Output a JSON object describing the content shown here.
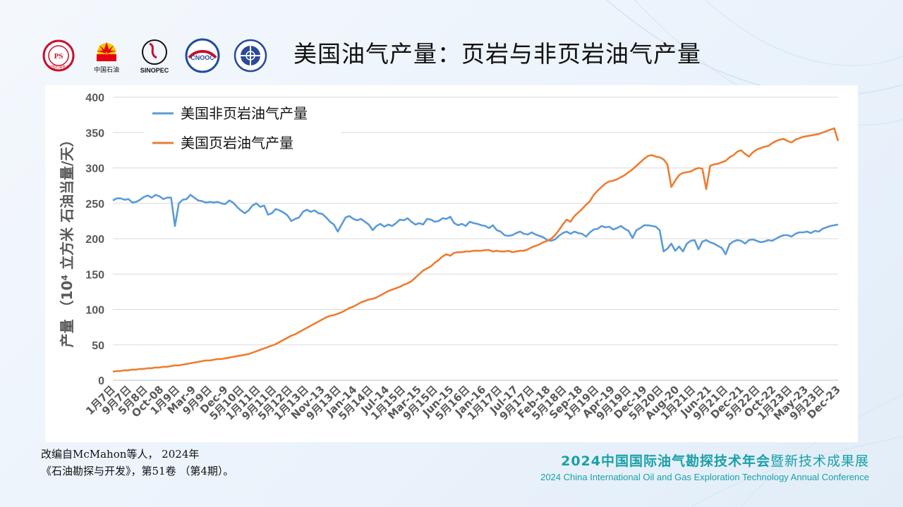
{
  "slide": {
    "title": "美国油气产量：页岩与非页岩油气产量",
    "source_line1": "改编自McMahon等人， 2024年",
    "source_line2": "《石油勘探与开发》，第51卷 （第4期）。",
    "conference_cn": "2024中国国际油气勘探技术年会",
    "conference_cn_suffix": "暨新技术成果展",
    "conference_en": "2024 China International Oil and Gas Exploration Technology Annual Conference"
  },
  "logos": [
    {
      "name": "cpsf-logo-icon",
      "text": "中国石油学会"
    },
    {
      "name": "petrochina-logo-icon",
      "text": "中国石油"
    },
    {
      "name": "sinopec-logo-icon",
      "text": "SINOPEC"
    },
    {
      "name": "cnooc-logo-icon",
      "text": "CNOOC"
    },
    {
      "name": "society-logo-icon",
      "text": ""
    }
  ],
  "colors": {
    "non_shale": "#5b9bd5",
    "shale": "#ed7d31",
    "axis_text": "#595959",
    "grid": "#d9d9d9",
    "conference": "#1aa0a8"
  },
  "chart_data": {
    "type": "line",
    "ylabel": "产量 （10⁴ 立方米 石油当量/天）",
    "ylim": [
      0,
      400
    ],
    "yticks": [
      0,
      50,
      100,
      150,
      200,
      250,
      300,
      350,
      400
    ],
    "grid": true,
    "legend_position": "top-left",
    "x_start": "Jan-2007",
    "x_end": "Dec-2023",
    "xtick_labels": [
      "1月7日",
      "9月7日",
      "5月8日",
      "Oct-08",
      "1月9日",
      "Mar-9",
      "9月9日",
      "Dec-9",
      "5月10日",
      "1月11日",
      "9月11日",
      "5月12日",
      "1月13日",
      "Nov-13",
      "9月13日",
      "Jan-14",
      "5月14日",
      "Jul-14",
      "1月15日",
      "Mar-15",
      "9月15日",
      "Jun-15",
      "5月16日",
      "Jan-16",
      "1月17日",
      "Jul-17",
      "9月17日",
      "Feb-18",
      "5月18日",
      "Sep-18",
      "1月19日",
      "Apr-19",
      "9月19日",
      "Dec-19",
      "5月20日",
      "Aug-20",
      "1月21日",
      "Jun-21",
      "9月21日",
      "Dec-21",
      "5月22日",
      "Oct-22",
      "1月23日",
      "May-23",
      "9月23日",
      "Dec-23"
    ],
    "series": [
      {
        "name": "美国非页岩油气产量",
        "values": [
          254,
          257,
          257,
          255,
          256,
          251,
          252,
          255,
          259,
          261,
          258,
          262,
          260,
          256,
          258,
          258,
          218,
          250,
          255,
          256,
          262,
          258,
          254,
          253,
          251,
          252,
          251,
          252,
          250,
          249,
          254,
          251,
          245,
          240,
          236,
          240,
          247,
          250,
          245,
          247,
          234,
          236,
          242,
          240,
          237,
          233,
          225,
          228,
          230,
          238,
          241,
          238,
          240,
          236,
          235,
          230,
          224,
          220,
          210,
          220,
          230,
          232,
          228,
          226,
          228,
          224,
          220,
          212,
          218,
          221,
          217,
          220,
          218,
          222,
          227,
          226,
          229,
          224,
          220,
          222,
          220,
          228,
          227,
          224,
          225,
          229,
          228,
          231,
          222,
          219,
          221,
          218,
          224,
          222,
          221,
          219,
          218,
          215,
          219,
          212,
          210,
          205,
          204,
          205,
          208,
          210,
          207,
          206,
          209,
          206,
          204,
          202,
          198,
          197,
          199,
          204,
          208,
          210,
          207,
          210,
          208,
          207,
          203,
          209,
          213,
          214,
          218,
          216,
          217,
          213,
          215,
          218,
          214,
          211,
          201,
          212,
          215,
          219,
          219,
          218,
          217,
          212,
          182,
          186,
          193,
          183,
          189,
          182,
          193,
          197,
          198,
          185,
          196,
          198,
          195,
          193,
          190,
          187,
          178,
          192,
          196,
          198,
          197,
          193,
          198,
          199,
          197,
          195,
          196,
          198,
          197,
          200,
          203,
          205,
          205,
          203,
          207,
          209,
          209,
          210,
          208,
          211,
          210,
          214,
          216,
          218,
          219,
          220
        ]
      },
      {
        "name": "美国页岩油气产量",
        "values": [
          12,
          13,
          13,
          14,
          14,
          15,
          15,
          16,
          16,
          17,
          17,
          18,
          18,
          19,
          19,
          20,
          21,
          21,
          22,
          23,
          24,
          25,
          26,
          27,
          28,
          28,
          29,
          30,
          30,
          31,
          32,
          33,
          34,
          35,
          36,
          37,
          39,
          41,
          43,
          45,
          47,
          49,
          51,
          54,
          57,
          60,
          63,
          65,
          68,
          71,
          74,
          77,
          80,
          83,
          86,
          89,
          91,
          92,
          94,
          96,
          99,
          102,
          104,
          107,
          110,
          112,
          114,
          115,
          117,
          120,
          123,
          126,
          128,
          130,
          132,
          135,
          137,
          140,
          145,
          150,
          155,
          158,
          161,
          166,
          170,
          175,
          178,
          176,
          180,
          181,
          181,
          182,
          182,
          183,
          183,
          183,
          184,
          184,
          182,
          183,
          182,
          182,
          183,
          181,
          182,
          183,
          183,
          185,
          188,
          190,
          192,
          195,
          197,
          200,
          205,
          212,
          220,
          227,
          224,
          232,
          237,
          242,
          248,
          253,
          262,
          268,
          273,
          278,
          281,
          282,
          284,
          287,
          290,
          294,
          298,
          303,
          308,
          313,
          317,
          318,
          316,
          315,
          312,
          305,
          273,
          282,
          290,
          293,
          294,
          295,
          298,
          300,
          299,
          270,
          303,
          305,
          306,
          308,
          310,
          315,
          318,
          323,
          325,
          320,
          316,
          322,
          326,
          328,
          330,
          331,
          335,
          338,
          340,
          341,
          338,
          336,
          340,
          342,
          344,
          345,
          346,
          347,
          348,
          350,
          352,
          354,
          356,
          338
        ]
      }
    ]
  }
}
